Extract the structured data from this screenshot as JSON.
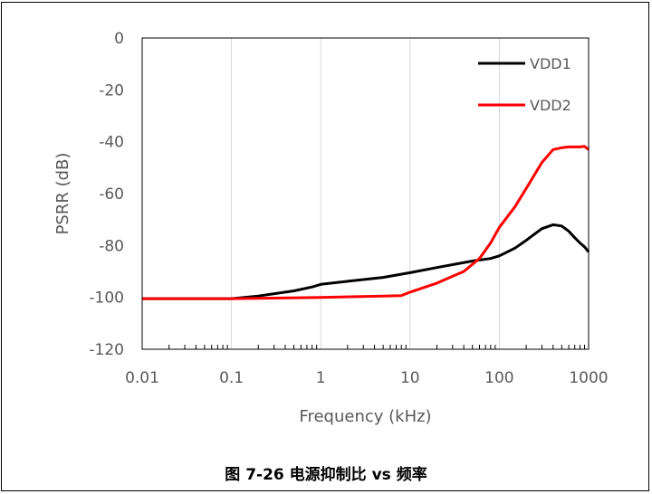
{
  "chart_data": {
    "type": "line",
    "xlabel": "Frequency (kHz)",
    "ylabel": "PSRR (dB)",
    "x_scale": "log",
    "xlim": [
      0.01,
      1000
    ],
    "ylim": [
      -120,
      0
    ],
    "x_ticks": [
      "0.01",
      "0.1",
      "1",
      "10",
      "100",
      "1000"
    ],
    "y_ticks": [
      "0",
      "-20",
      "-40",
      "-60",
      "-80",
      "-100",
      "-120"
    ],
    "grid": "vertical",
    "legend_position": "top-right",
    "series": [
      {
        "name": "VDD1",
        "color": "#000000",
        "points": [
          [
            0.01,
            -100.5
          ],
          [
            0.05,
            -100.5
          ],
          [
            0.1,
            -100.5
          ],
          [
            0.2,
            -99.5
          ],
          [
            0.5,
            -97.5
          ],
          [
            0.8,
            -96
          ],
          [
            1,
            -95
          ],
          [
            2,
            -93.8
          ],
          [
            5,
            -92.3
          ],
          [
            10,
            -90.5
          ],
          [
            20,
            -88.5
          ],
          [
            50,
            -86
          ],
          [
            80,
            -85
          ],
          [
            100,
            -84
          ],
          [
            150,
            -81
          ],
          [
            200,
            -78
          ],
          [
            300,
            -73.5
          ],
          [
            400,
            -72
          ],
          [
            500,
            -72.5
          ],
          [
            600,
            -74.5
          ],
          [
            700,
            -77
          ],
          [
            800,
            -79
          ],
          [
            900,
            -80.5
          ],
          [
            1000,
            -82.5
          ]
        ]
      },
      {
        "name": "VDD2",
        "color": "#ff0000",
        "points": [
          [
            0.01,
            -100.5
          ],
          [
            0.1,
            -100.5
          ],
          [
            1,
            -100
          ],
          [
            5,
            -99.5
          ],
          [
            8,
            -99.3
          ],
          [
            10,
            -98
          ],
          [
            20,
            -94.5
          ],
          [
            40,
            -90
          ],
          [
            60,
            -85
          ],
          [
            80,
            -79
          ],
          [
            100,
            -73
          ],
          [
            150,
            -65
          ],
          [
            200,
            -58
          ],
          [
            300,
            -48
          ],
          [
            400,
            -43
          ],
          [
            500,
            -42.3
          ],
          [
            600,
            -42
          ],
          [
            800,
            -42
          ],
          [
            900,
            -41.8
          ],
          [
            1000,
            -43
          ]
        ]
      }
    ]
  },
  "caption": "图 7-26 电源抑制比 vs 频率"
}
